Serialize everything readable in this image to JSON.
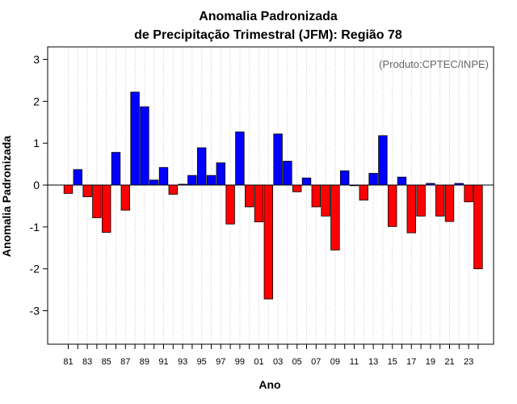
{
  "chart_data": {
    "type": "bar",
    "title": [
      "Anomalia Padronizada",
      "de Precipitação Trimestral (JFM): Região 78"
    ],
    "annotation": "(Produto:CPTEC/INPE)",
    "xlabel": "Ano",
    "ylabel": "Anomalia Padronizada",
    "ylim": [
      -3.8,
      3.3
    ],
    "yticks": [
      -3,
      -2,
      -1,
      0,
      1,
      2,
      3
    ],
    "ytick_labels": [
      "-3",
      "-2",
      "-1",
      "0",
      "1",
      "2",
      "3"
    ],
    "xtick_labels": [
      "81",
      "83",
      "85",
      "87",
      "89",
      "91",
      "93",
      "95",
      "97",
      "99",
      "01",
      "03",
      "05",
      "07",
      "09",
      "11",
      "13",
      "15",
      "17",
      "19",
      "21",
      "23"
    ],
    "grid": "vertical dotted",
    "categories": [
      "1981",
      "1982",
      "1983",
      "1984",
      "1985",
      "1986",
      "1987",
      "1988",
      "1989",
      "1990",
      "1991",
      "1992",
      "1993",
      "1994",
      "1995",
      "1996",
      "1997",
      "1998",
      "1999",
      "2000",
      "2001",
      "2002",
      "2003",
      "2004",
      "2005",
      "2006",
      "2007",
      "2008",
      "2009",
      "2010",
      "2011",
      "2012",
      "2013",
      "2014",
      "2015",
      "2016",
      "2017",
      "2018",
      "2019",
      "2020",
      "2021",
      "2022",
      "2023",
      "2024"
    ],
    "values": [
      -0.2,
      0.37,
      -0.28,
      -0.78,
      -1.13,
      0.78,
      -0.6,
      2.22,
      1.87,
      0.12,
      0.42,
      -0.22,
      0.02,
      0.23,
      0.89,
      0.23,
      0.53,
      -0.93,
      1.27,
      -0.52,
      -0.88,
      -2.72,
      1.22,
      0.57,
      -0.16,
      0.17,
      -0.52,
      -0.74,
      -1.55,
      0.34,
      -0.01,
      -0.36,
      0.28,
      1.18,
      -0.99,
      0.19,
      -1.14,
      -0.74,
      0.04,
      -0.74,
      -0.87,
      0.04,
      -0.4,
      -2.0
    ],
    "colors": {
      "positive": "#0000ff",
      "negative": "#ff0000",
      "edge": "#000000",
      "grid": "#cccccc",
      "axis": "#000000"
    }
  }
}
